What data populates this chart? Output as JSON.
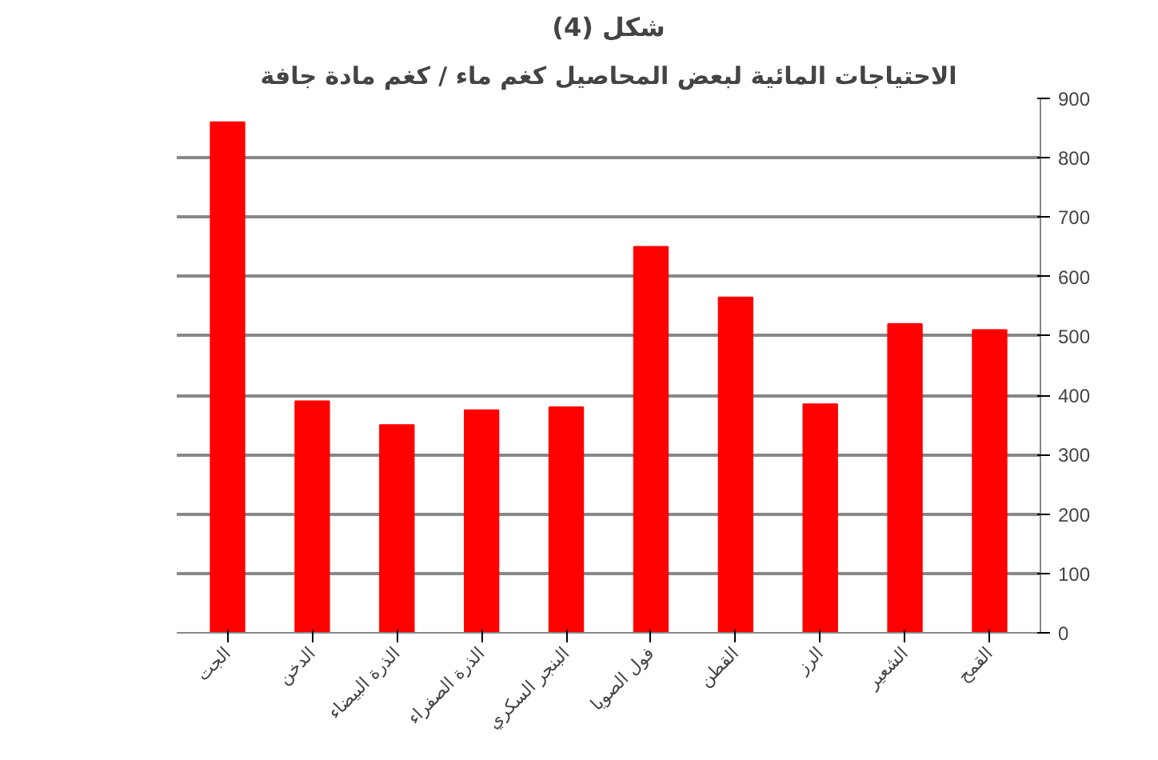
{
  "chart_data": {
    "type": "bar",
    "title": "شكل (4)",
    "subtitle": "الاحتياجات المائية لبعض المحاصيل كغم ماء / كغم مادة جافة",
    "categories": [
      "الجت",
      "الدخن",
      "الذرة البيضاء",
      "الذرة الصفراء",
      "البنجر السكري",
      "فول الصويا",
      "القطن",
      "الرز",
      "الشعير",
      "القمح"
    ],
    "values": [
      860,
      390,
      350,
      375,
      380,
      650,
      565,
      385,
      520,
      510
    ],
    "color": "#ff0000",
    "ylim": [
      0,
      900
    ],
    "yticks": [
      0,
      100,
      200,
      300,
      400,
      500,
      600,
      700,
      800,
      900
    ],
    "grid": "y"
  }
}
